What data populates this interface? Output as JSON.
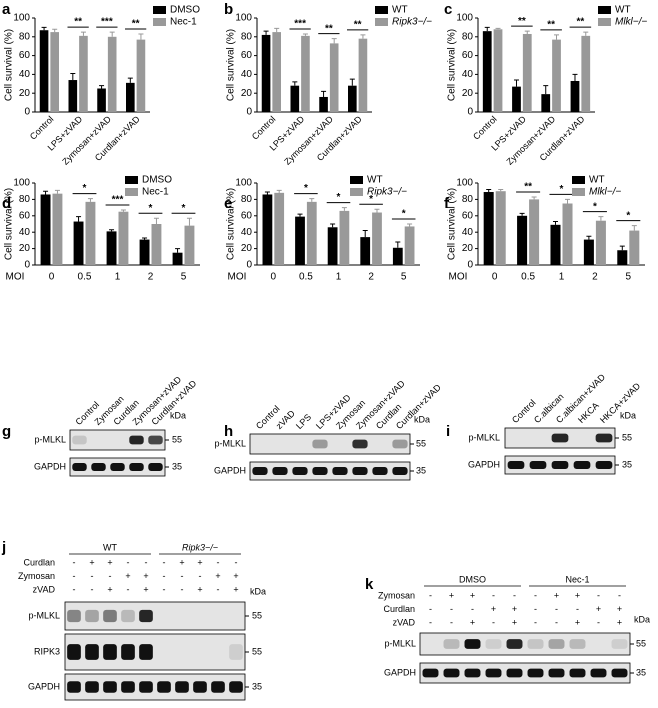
{
  "chart_data": [
    {
      "type": "bar",
      "panel": "a",
      "ylabel": "Cell survival (%)",
      "categories": [
        "Control",
        "LPS+zVAD",
        "Zymosan+zVAD",
        "Curdlan+zVAD"
      ],
      "series": [
        {
          "name": "DMSO",
          "color": "#000000",
          "values": [
            87,
            34,
            25,
            31
          ],
          "errors": [
            3,
            7,
            3,
            5
          ]
        },
        {
          "name": "Nec-1",
          "color": "#999999",
          "values": [
            85,
            81,
            80,
            77
          ],
          "errors": [
            3,
            4,
            5,
            6
          ]
        }
      ],
      "annotations": [
        {
          "text": "**",
          "category": "LPS+zVAD"
        },
        {
          "text": "***",
          "category": "Zymosan+zVAD"
        },
        {
          "text": "**",
          "category": "Curdlan+zVAD"
        }
      ],
      "ylim": [
        0,
        100
      ],
      "yticks": [
        0,
        20,
        40,
        60,
        80,
        100
      ]
    },
    {
      "type": "bar",
      "panel": "b",
      "ylabel": "Cell survival (%)",
      "categories": [
        "Control",
        "LPS+zVAD",
        "Zymosan+zVAD",
        "Curdlan+zVAD"
      ],
      "series": [
        {
          "name": "WT",
          "color": "#000000",
          "values": [
            82,
            28,
            16,
            28
          ],
          "errors": [
            4,
            4,
            6,
            7
          ]
        },
        {
          "name": "Ripk3−/−",
          "color": "#999999",
          "values": [
            85,
            81,
            73,
            78
          ],
          "errors": [
            4,
            2,
            5,
            4
          ]
        }
      ],
      "annotations": [
        {
          "text": "***",
          "category": "LPS+zVAD"
        },
        {
          "text": "**",
          "category": "Zymosan+zVAD"
        },
        {
          "text": "**",
          "category": "Curdlan+zVAD"
        }
      ],
      "ylim": [
        0,
        100
      ],
      "yticks": [
        0,
        20,
        40,
        60,
        80,
        100
      ]
    },
    {
      "type": "bar",
      "panel": "c",
      "ylabel": "Cell survival (%)",
      "categories": [
        "Control",
        "LPS+zVAD",
        "Zymosan+zVAD",
        "Curdlan+zVAD"
      ],
      "series": [
        {
          "name": "WT",
          "color": "#000000",
          "values": [
            86,
            27,
            19,
            33
          ],
          "errors": [
            4,
            7,
            9,
            7
          ]
        },
        {
          "name": "Mlkl−/−",
          "color": "#999999",
          "values": [
            88,
            83,
            77,
            81
          ],
          "errors": [
            1,
            3,
            5,
            4
          ]
        }
      ],
      "annotations": [
        {
          "text": "**",
          "category": "LPS+zVAD"
        },
        {
          "text": "**",
          "category": "Zymosan+zVAD"
        },
        {
          "text": "**",
          "category": "Curdlan+zVAD"
        }
      ],
      "ylim": [
        0,
        100
      ],
      "yticks": [
        0,
        20,
        40,
        60,
        80,
        100
      ]
    },
    {
      "type": "bar",
      "panel": "d",
      "ylabel": "Cell survival (%)",
      "xlabel": "MOI",
      "categories": [
        "0",
        "0.5",
        "1",
        "2",
        "5"
      ],
      "series": [
        {
          "name": "DMSO",
          "color": "#000000",
          "values": [
            86,
            53,
            41,
            31,
            15
          ],
          "errors": [
            4,
            6,
            2,
            2,
            5
          ]
        },
        {
          "name": "Nec-1",
          "color": "#999999",
          "values": [
            87,
            77,
            65,
            50,
            48
          ],
          "errors": [
            4,
            4,
            2,
            7,
            9
          ]
        }
      ],
      "annotations": [
        {
          "text": "*",
          "category": "0.5"
        },
        {
          "text": "***",
          "category": "1"
        },
        {
          "text": "*",
          "category": "2"
        },
        {
          "text": "*",
          "category": "5"
        }
      ],
      "ylim": [
        0,
        100
      ],
      "yticks": [
        0,
        20,
        40,
        60,
        80,
        100
      ]
    },
    {
      "type": "bar",
      "panel": "e",
      "ylabel": "Cell survival (%)",
      "xlabel": "MOI",
      "categories": [
        "0",
        "0.5",
        "1",
        "2",
        "5"
      ],
      "series": [
        {
          "name": "WT",
          "color": "#000000",
          "values": [
            86,
            59,
            46,
            34,
            21
          ],
          "errors": [
            3,
            3,
            4,
            8,
            7
          ]
        },
        {
          "name": "Ripk3−/−",
          "color": "#999999",
          "values": [
            88,
            77,
            66,
            64,
            47
          ],
          "errors": [
            3,
            4,
            4,
            4,
            3
          ]
        }
      ],
      "annotations": [
        {
          "text": "*",
          "category": "0.5"
        },
        {
          "text": "*",
          "category": "1"
        },
        {
          "text": "*",
          "category": "2"
        },
        {
          "text": "*",
          "category": "5"
        }
      ],
      "ylim": [
        0,
        100
      ],
      "yticks": [
        0,
        20,
        40,
        60,
        80,
        100
      ]
    },
    {
      "type": "bar",
      "panel": "f",
      "ylabel": "Cell survival (%)",
      "xlabel": "MOI",
      "categories": [
        "0",
        "0.5",
        "1",
        "2",
        "5"
      ],
      "series": [
        {
          "name": "WT",
          "color": "#000000",
          "values": [
            89,
            60,
            49,
            31,
            18
          ],
          "errors": [
            3,
            3,
            4,
            4,
            5
          ]
        },
        {
          "name": "Mlkl−/−",
          "color": "#999999",
          "values": [
            90,
            80,
            75,
            54,
            42
          ],
          "errors": [
            2,
            3,
            5,
            5,
            6
          ]
        }
      ],
      "annotations": [
        {
          "text": "**",
          "category": "0.5"
        },
        {
          "text": "*",
          "category": "1"
        },
        {
          "text": "*",
          "category": "2"
        },
        {
          "text": "*",
          "category": "5"
        }
      ],
      "ylim": [
        0,
        100
      ],
      "yticks": [
        0,
        20,
        40,
        60,
        80,
        100
      ]
    }
  ],
  "blots": [
    {
      "panel": "g",
      "lanes": [
        "Control",
        "Zymosan",
        "Curdlan",
        "Zymosan+zVAD",
        "Curdlan+zVAD"
      ],
      "rows": [
        "p-MLKL",
        "GAPDH"
      ],
      "unit": "kDa",
      "markers": [
        55,
        35
      ]
    },
    {
      "panel": "h",
      "lanes": [
        "Control",
        "zVAD",
        "LPS",
        "LPS+zVAD",
        "Zymosan",
        "Zymosan+zVAD",
        "Curdlan",
        "Curdlan+zVAD"
      ],
      "rows": [
        "p-MLKL",
        "GAPDH"
      ],
      "unit": "kDa",
      "markers": [
        55,
        35
      ]
    },
    {
      "panel": "i",
      "lanes": [
        "Control",
        "C.albican",
        "C.albican+zVAD",
        "HKCA",
        "HKCA+zVAD"
      ],
      "rows": [
        "p-MLKL",
        "GAPDH"
      ],
      "unit": "kDa",
      "markers": [
        55,
        35
      ]
    },
    {
      "panel": "j",
      "groups": [
        "WT",
        "Ripk3−/−"
      ],
      "conditions": [
        {
          "label": "Curdlan",
          "signs": [
            "-",
            "+",
            "+",
            "-",
            "-",
            "-",
            "+",
            "+",
            "-",
            "-"
          ]
        },
        {
          "label": "Zymosan",
          "signs": [
            "-",
            "-",
            "-",
            "+",
            "+",
            "-",
            "-",
            "-",
            "+",
            "+"
          ]
        },
        {
          "label": "zVAD",
          "signs": [
            "-",
            "-",
            "+",
            "-",
            "+",
            "-",
            "-",
            "+",
            "-",
            "+"
          ]
        }
      ],
      "rows": [
        "p-MLKL",
        "RIPK3",
        "GAPDH"
      ],
      "unit": "kDa",
      "markers": [
        55,
        55,
        35
      ]
    },
    {
      "panel": "k",
      "groups": [
        "DMSO",
        "Nec-1"
      ],
      "conditions": [
        {
          "label": "Zymosan",
          "signs": [
            "-",
            "+",
            "+",
            "-",
            "-",
            "-",
            "+",
            "+",
            "-",
            "-"
          ]
        },
        {
          "label": "Curdlan",
          "signs": [
            "-",
            "-",
            "-",
            "+",
            "+",
            "-",
            "-",
            "-",
            "+",
            "+"
          ]
        },
        {
          "label": "zVAD",
          "signs": [
            "-",
            "-",
            "+",
            "-",
            "+",
            "-",
            "-",
            "+",
            "-",
            "+"
          ]
        }
      ],
      "rows": [
        "p-MLKL",
        "GAPDH"
      ],
      "unit": "kDa",
      "markers": [
        55,
        35
      ]
    }
  ]
}
